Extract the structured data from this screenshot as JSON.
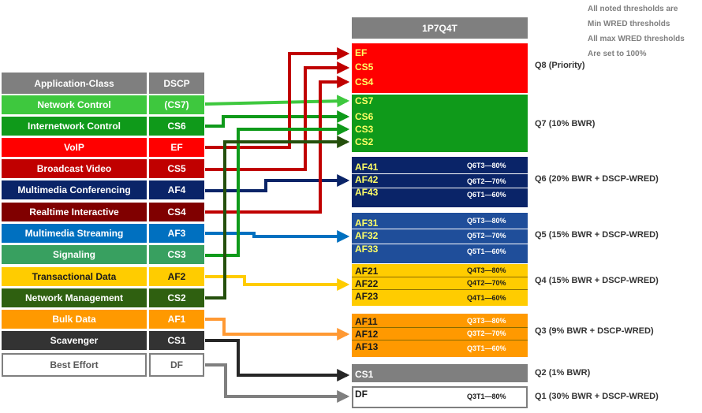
{
  "notes": [
    "All noted thresholds are",
    "Min WRED  thresholds",
    "All max WRED  thresholds",
    "Are set to 100%"
  ],
  "table": {
    "header_class": "Application-Class",
    "header_dscp": "DSCP",
    "rows": [
      {
        "name": "Network Control",
        "dscp": "(CS7)",
        "bg": "#3ec83e",
        "fg": "#ffffff"
      },
      {
        "name": "Internetwork Control",
        "dscp": "CS6",
        "bg": "#0f9a1a",
        "fg": "#ffffff"
      },
      {
        "name": "VoIP",
        "dscp": "EF",
        "bg": "#ff0000",
        "fg": "#ffffff"
      },
      {
        "name": "Broadcast Video",
        "dscp": "CS5",
        "bg": "#c00000",
        "fg": "#ffffff"
      },
      {
        "name": "Multimedia Conferencing",
        "dscp": "AF4",
        "bg": "#0a2468",
        "fg": "#ffffff"
      },
      {
        "name": "Realtime Interactive",
        "dscp": "CS4",
        "bg": "#800000",
        "fg": "#ffffff"
      },
      {
        "name": "Multimedia Streaming",
        "dscp": "AF3",
        "bg": "#0070c0",
        "fg": "#ffffff"
      },
      {
        "name": "Signaling",
        "dscp": "CS3",
        "bg": "#38a060",
        "fg": "#ffffff"
      },
      {
        "name": "Transactional Data",
        "dscp": "AF2",
        "bg": "#ffcc00",
        "fg": "#1a1a1a"
      },
      {
        "name": "Network Management",
        "dscp": "CS2",
        "bg": "#2f6010",
        "fg": "#ffffff"
      },
      {
        "name": "Bulk Data",
        "dscp": "AF1",
        "bg": "#ff9900",
        "fg": "#ffffff"
      },
      {
        "name": "Scavenger",
        "dscp": "CS1",
        "bg": "#333333",
        "fg": "#ffffff"
      },
      {
        "name": "Best Effort",
        "dscp": "DF",
        "bg": "#ffffff",
        "fg": "#595959"
      }
    ]
  },
  "queue_header": "1P7Q4T",
  "queues": [
    {
      "label": "Q8 (Priority)",
      "bg": "#ff0000",
      "classes": [
        "EF",
        "CS5",
        "CS4"
      ],
      "class_color": "#ffff66",
      "thresholds": []
    },
    {
      "label": "Q7 (10% BWR)",
      "bg": "#0f9a1a",
      "classes": [
        "CS7",
        "CS6",
        "CS3",
        "CS2"
      ],
      "class_color": "#ffff66",
      "thresholds": []
    },
    {
      "label": "Q6 (20% BWR + DSCP-WRED)",
      "bg": "#0a2468",
      "classes": [
        "AF41",
        "AF42",
        "AF43"
      ],
      "class_color": "#ffff66",
      "thresholds": [
        "Q6T3—80%",
        "Q6T2—70%",
        "Q6T1—60%"
      ]
    },
    {
      "label": "Q5 (15% BWR + DSCP-WRED)",
      "bg": "#1f4e9a",
      "classes": [
        "AF31",
        "AF32",
        "AF33"
      ],
      "class_color": "#ffff66",
      "thresholds": [
        "Q5T3—80%",
        "Q5T2—70%",
        "Q5T1—60%"
      ]
    },
    {
      "label": "Q4 (15% BWR + DSCP-WRED)",
      "bg": "#ffcc00",
      "classes": [
        "AF21",
        "AF22",
        "AF23"
      ],
      "class_color": "#1a1a1a",
      "thresholds": [
        "Q4T3—80%",
        "Q4T2—70%",
        "Q4T1—60%"
      ]
    },
    {
      "label": "Q3 (9% BWR + DSCP-WRED)",
      "bg": "#ff9900",
      "classes": [
        "AF11",
        "AF12",
        "AF13"
      ],
      "class_color": "#1a1a1a",
      "thresholds": [
        "Q3T3—80%",
        "Q3T2—70%",
        "Q3T1—60%"
      ]
    },
    {
      "label": "Q2 (1% BWR)",
      "bg": "#7f7f7f",
      "classes": [
        "CS1"
      ],
      "class_color": "#ffffff",
      "thresholds": []
    },
    {
      "label": "Q1 (30% BWR + DSCP-WRED)",
      "bg": "#ffffff",
      "classes": [
        "DF"
      ],
      "class_color": "#1a1a1a",
      "thresholds": [
        "Q3T1—80%"
      ]
    }
  ]
}
